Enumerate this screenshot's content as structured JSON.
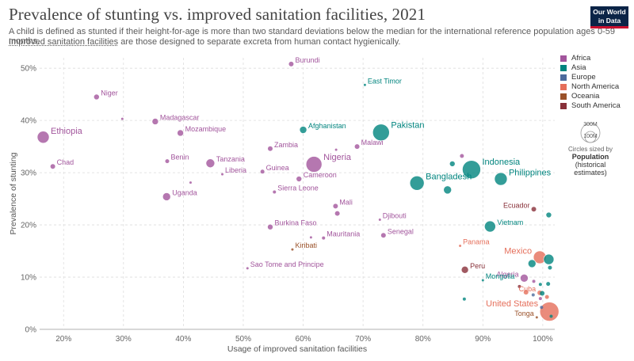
{
  "header": {
    "title": "Prevalence of stunting vs. improved sanitation facilities, 2021",
    "subtitle_line1": "A child is defined as stunted if their height-for-age is more than two standard deviations below the median for the international reference population ages 0-59 months.",
    "subtitle_line2_link": "Improved sanitation facilities",
    "subtitle_line2_rest": " are those designed to separate excreta from human contact hygienically.",
    "logo_line1": "Our World",
    "logo_line2": "in Data"
  },
  "colors": {
    "Africa": "#a2559c",
    "Asia": "#00847e",
    "Europe": "#4c6a9c",
    "North America": "#e56e5a",
    "Oceania": "#9a5129",
    "South America": "#883039"
  },
  "legend": [
    "Africa",
    "Asia",
    "Europe",
    "North America",
    "Oceania",
    "South America"
  ],
  "size_legend": {
    "large": "300M",
    "small": "100M",
    "caption": "Circles sized by",
    "title1": "Population",
    "title2": "(historical",
    "title3": "estimates)"
  },
  "chart_data": {
    "type": "scatter",
    "xlabel": "Usage of improved sanitation facilities",
    "ylabel": "Prevalence of stunting",
    "xlim": [
      16,
      102
    ],
    "ylim": [
      0,
      52
    ],
    "xticks": [
      20,
      30,
      40,
      50,
      60,
      70,
      80,
      90,
      100
    ],
    "xtick_labels": [
      "20%",
      "30%",
      "40%",
      "50%",
      "60%",
      "70%",
      "80%",
      "90%",
      "100%"
    ],
    "yticks": [
      0,
      10,
      20,
      30,
      40,
      50
    ],
    "ytick_labels": [
      "0%",
      "10%",
      "20%",
      "30%",
      "40%",
      "50%"
    ],
    "grid": "dashed",
    "points": [
      {
        "name": "Burundi",
        "x": 58.0,
        "y": 50.8,
        "r": 3,
        "region": "Africa",
        "label": true
      },
      {
        "name": "East Timor",
        "x": 70.3,
        "y": 46.8,
        "r": 1.5,
        "region": "Asia",
        "label": true
      },
      {
        "name": "Niger",
        "x": 25.5,
        "y": 44.5,
        "r": 3.5,
        "region": "Africa",
        "label": true
      },
      {
        "name": "",
        "x": 29.8,
        "y": 40.3,
        "r": 1.5,
        "region": "Africa",
        "label": false
      },
      {
        "name": "Madagascar",
        "x": 35.3,
        "y": 39.8,
        "r": 4,
        "region": "Africa",
        "label": true
      },
      {
        "name": "Mozambique",
        "x": 39.5,
        "y": 37.6,
        "r": 4,
        "region": "Africa",
        "label": true
      },
      {
        "name": "Ethiopia",
        "x": 16.6,
        "y": 36.8,
        "r": 7.5,
        "region": "Africa",
        "label": true
      },
      {
        "name": "Afghanistan",
        "x": 60.0,
        "y": 38.2,
        "r": 4.5,
        "region": "Asia",
        "label": true
      },
      {
        "name": "Pakistan",
        "x": 73.0,
        "y": 37.7,
        "r": 10.5,
        "region": "Asia",
        "label": true
      },
      {
        "name": "Malawi",
        "x": 69.0,
        "y": 35.0,
        "r": 3,
        "region": "Africa",
        "label": true
      },
      {
        "name": "",
        "x": 65.5,
        "y": 34.4,
        "r": 1.5,
        "region": "Africa",
        "label": false
      },
      {
        "name": "Zambia",
        "x": 54.5,
        "y": 34.6,
        "r": 3,
        "region": "Africa",
        "label": true
      },
      {
        "name": "Nigeria",
        "x": 61.8,
        "y": 31.6,
        "r": 10,
        "region": "Africa",
        "label": true
      },
      {
        "name": "Chad",
        "x": 18.2,
        "y": 31.2,
        "r": 3,
        "region": "Africa",
        "label": true
      },
      {
        "name": "Benin",
        "x": 37.3,
        "y": 32.2,
        "r": 2.5,
        "region": "Africa",
        "label": true
      },
      {
        "name": "Tanzania",
        "x": 44.5,
        "y": 31.8,
        "r": 5.5,
        "region": "Africa",
        "label": true
      },
      {
        "name": "Liberia",
        "x": 46.5,
        "y": 29.7,
        "r": 1.5,
        "region": "Africa",
        "label": true
      },
      {
        "name": "Guinea",
        "x": 53.2,
        "y": 30.2,
        "r": 2.5,
        "region": "Africa",
        "label": true
      },
      {
        "name": "Cameroon",
        "x": 59.3,
        "y": 28.8,
        "r": 3.5,
        "region": "Africa",
        "label": true
      },
      {
        "name": "",
        "x": 41.2,
        "y": 28.1,
        "r": 1.5,
        "region": "Africa",
        "label": false
      },
      {
        "name": "Sierra Leone",
        "x": 55.2,
        "y": 26.3,
        "r": 2,
        "region": "Africa",
        "label": true
      },
      {
        "name": "Uganda",
        "x": 37.2,
        "y": 25.4,
        "r": 5,
        "region": "Africa",
        "label": true
      },
      {
        "name": "Indonesia",
        "x": 88.1,
        "y": 30.6,
        "r": 11.5,
        "region": "Asia",
        "label": true
      },
      {
        "name": "",
        "x": 86.5,
        "y": 33.2,
        "r": 2.5,
        "region": "Africa",
        "label": false
      },
      {
        "name": "",
        "x": 84.9,
        "y": 31.7,
        "r": 3.5,
        "region": "Asia",
        "label": false
      },
      {
        "name": "Bangladesh",
        "x": 79.0,
        "y": 28.0,
        "r": 9,
        "region": "Asia",
        "label": true
      },
      {
        "name": "",
        "x": 84.1,
        "y": 26.7,
        "r": 5,
        "region": "Asia",
        "label": false
      },
      {
        "name": "Philippines",
        "x": 93.0,
        "y": 28.8,
        "r": 8,
        "region": "Asia",
        "label": true
      },
      {
        "name": "Ecuador",
        "x": 98.5,
        "y": 23.0,
        "r": 3,
        "region": "South America",
        "label": true
      },
      {
        "name": "",
        "x": 101.0,
        "y": 21.9,
        "r": 3.5,
        "region": "Asia",
        "label": false
      },
      {
        "name": "Mali",
        "x": 65.4,
        "y": 23.6,
        "r": 3,
        "region": "Africa",
        "label": true
      },
      {
        "name": "",
        "x": 65.7,
        "y": 22.2,
        "r": 3,
        "region": "Africa",
        "label": false
      },
      {
        "name": "Djibouti",
        "x": 72.8,
        "y": 21.0,
        "r": 1.5,
        "region": "Africa",
        "label": true
      },
      {
        "name": "Vietnam",
        "x": 91.2,
        "y": 19.7,
        "r": 7,
        "region": "Asia",
        "label": true
      },
      {
        "name": "Burkina Faso",
        "x": 54.5,
        "y": 19.6,
        "r": 3.5,
        "region": "Africa",
        "label": true
      },
      {
        "name": "Senegal",
        "x": 73.4,
        "y": 18.0,
        "r": 3,
        "region": "Africa",
        "label": true
      },
      {
        "name": "Mauritania",
        "x": 63.4,
        "y": 17.5,
        "r": 2,
        "region": "Africa",
        "label": true
      },
      {
        "name": "",
        "x": 61.3,
        "y": 17.6,
        "r": 1.5,
        "region": "Africa",
        "label": false
      },
      {
        "name": "Kiribati",
        "x": 58.2,
        "y": 15.3,
        "r": 1.5,
        "region": "Oceania",
        "label": true
      },
      {
        "name": "Sao Tome and Principe",
        "x": 50.7,
        "y": 11.7,
        "r": 1.5,
        "region": "Africa",
        "label": true
      },
      {
        "name": "Peru",
        "x": 87.0,
        "y": 11.4,
        "r": 4.5,
        "region": "South America",
        "label": true
      },
      {
        "name": "Panama",
        "x": 86.2,
        "y": 16.0,
        "r": 1.5,
        "region": "North America",
        "label": true
      },
      {
        "name": "Mexico",
        "x": 99.5,
        "y": 13.8,
        "r": 8,
        "region": "North America",
        "label": true
      },
      {
        "name": "",
        "x": 101.0,
        "y": 13.4,
        "r": 6.5,
        "region": "Asia",
        "label": false
      },
      {
        "name": "",
        "x": 98.2,
        "y": 12.6,
        "r": 5,
        "region": "Asia",
        "label": false
      },
      {
        "name": "",
        "x": 101.2,
        "y": 11.8,
        "r": 2.5,
        "region": "Asia",
        "label": false
      },
      {
        "name": "Algeria",
        "x": 96.9,
        "y": 9.8,
        "r": 5,
        "region": "Africa",
        "label": true
      },
      {
        "name": "Mongolia",
        "x": 90.0,
        "y": 9.4,
        "r": 1.5,
        "region": "Asia",
        "label": true
      },
      {
        "name": "Cuba",
        "x": 99.5,
        "y": 7.0,
        "r": 3,
        "region": "North America",
        "label": true
      },
      {
        "name": "",
        "x": 98.5,
        "y": 9.2,
        "r": 2,
        "region": "Africa",
        "label": false
      },
      {
        "name": "",
        "x": 99.6,
        "y": 8.6,
        "r": 2,
        "region": "Asia",
        "label": false
      },
      {
        "name": "",
        "x": 100.9,
        "y": 8.7,
        "r": 2.5,
        "region": "Asia",
        "label": false
      },
      {
        "name": "",
        "x": 96.1,
        "y": 8.2,
        "r": 2,
        "region": "South America",
        "label": false
      },
      {
        "name": "",
        "x": 97.2,
        "y": 7.1,
        "r": 3,
        "region": "North America",
        "label": false
      },
      {
        "name": "",
        "x": 98.4,
        "y": 6.6,
        "r": 2,
        "region": "Europe",
        "label": false
      },
      {
        "name": "",
        "x": 99.9,
        "y": 6.9,
        "r": 3,
        "region": "Asia",
        "label": false
      },
      {
        "name": "",
        "x": 100.7,
        "y": 6.2,
        "r": 2.5,
        "region": "North America",
        "label": false
      },
      {
        "name": "United States",
        "x": 101.1,
        "y": 3.4,
        "r": 12,
        "region": "North America",
        "label": true
      },
      {
        "name": "Tonga",
        "x": 99.0,
        "y": 2.3,
        "r": 1.5,
        "region": "Oceania",
        "label": true
      },
      {
        "name": "",
        "x": 99.8,
        "y": 4.2,
        "r": 2,
        "region": "Europe",
        "label": false
      },
      {
        "name": "",
        "x": 99.6,
        "y": 5.9,
        "r": 2,
        "region": "Africa",
        "label": false
      },
      {
        "name": "",
        "x": 86.9,
        "y": 5.8,
        "r": 2,
        "region": "Asia",
        "label": false
      },
      {
        "name": "",
        "x": 101.4,
        "y": 2.5,
        "r": 2,
        "region": "Asia",
        "label": false
      }
    ]
  }
}
